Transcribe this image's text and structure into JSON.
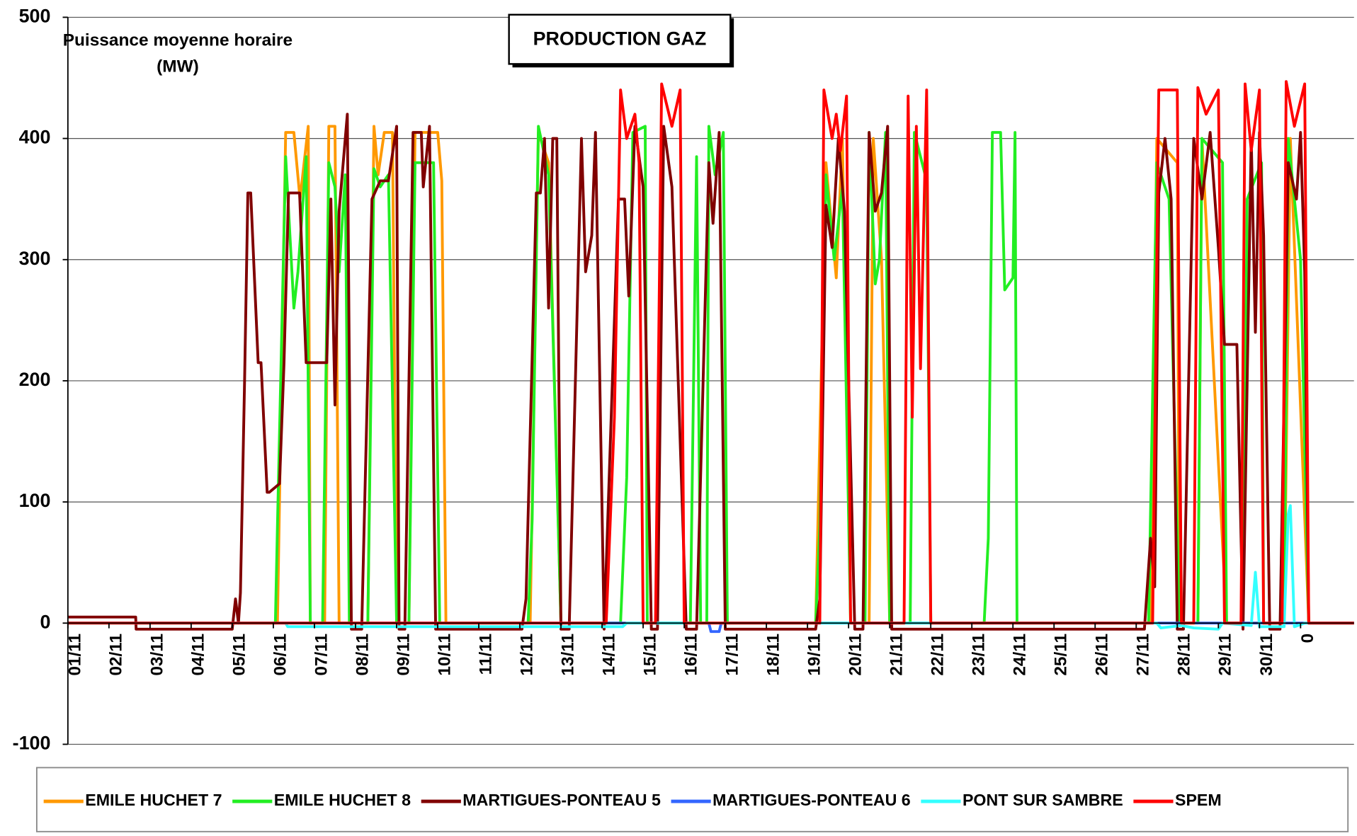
{
  "chart_data": {
    "type": "line",
    "title": "PRODUCTION GAZ",
    "y_label": "Puissance moyenne horaire (MW)",
    "xlim": [
      0,
      31.3
    ],
    "ylim": [
      -100,
      500
    ],
    "yticks": [
      -100,
      0,
      100,
      200,
      300,
      400,
      500
    ],
    "xticks": [
      {
        "value": 0,
        "label": "01/11"
      },
      {
        "value": 1,
        "label": "02/11"
      },
      {
        "value": 2,
        "label": "03/11"
      },
      {
        "value": 3,
        "label": "04/11"
      },
      {
        "value": 4,
        "label": "05/11"
      },
      {
        "value": 5,
        "label": "06/11"
      },
      {
        "value": 6,
        "label": "07/11"
      },
      {
        "value": 7,
        "label": "08/11"
      },
      {
        "value": 8,
        "label": "09/11"
      },
      {
        "value": 9,
        "label": "10/11"
      },
      {
        "value": 10,
        "label": "11/11"
      },
      {
        "value": 11,
        "label": "12/11"
      },
      {
        "value": 12,
        "label": "13/11"
      },
      {
        "value": 13,
        "label": "14/11"
      },
      {
        "value": 14,
        "label": "15/11"
      },
      {
        "value": 15,
        "label": "16/11"
      },
      {
        "value": 16,
        "label": "17/11"
      },
      {
        "value": 17,
        "label": "18/11"
      },
      {
        "value": 18,
        "label": "19/11"
      },
      {
        "value": 19,
        "label": "20/11"
      },
      {
        "value": 20,
        "label": "21/11"
      },
      {
        "value": 21,
        "label": "22/11"
      },
      {
        "value": 22,
        "label": "23/11"
      },
      {
        "value": 23,
        "label": "24/11"
      },
      {
        "value": 24,
        "label": "25/11"
      },
      {
        "value": 25,
        "label": "26/11"
      },
      {
        "value": 26,
        "label": "27/11"
      },
      {
        "value": 27,
        "label": "28/11"
      },
      {
        "value": 28,
        "label": "29/11"
      },
      {
        "value": 29,
        "label": "30/11"
      },
      {
        "value": 30,
        "label": "0"
      }
    ],
    "grid": true,
    "legend": "bottom",
    "series": [
      {
        "name": "EMILE HUCHET 7",
        "color": "#ff9900",
        "x": [
          0,
          5.1,
          5.3,
          5.5,
          5.65,
          5.85,
          5.9,
          6.25,
          6.35,
          6.5,
          6.6,
          7.3,
          7.45,
          7.55,
          7.7,
          7.9,
          8.0,
          8.3,
          8.45,
          9.0,
          9.1,
          9.2,
          11.25,
          11.45,
          11.7,
          12.0,
          18.2,
          18.45,
          18.7,
          18.85,
          19.05,
          19.5,
          19.6,
          19.8,
          20.0,
          26.35,
          26.5,
          27.0,
          27.05,
          27.5,
          27.6,
          28.2,
          29.6,
          29.75,
          30.2,
          31.3
        ],
        "values": [
          0,
          0,
          405,
          405,
          350,
          410,
          0,
          0,
          410,
          410,
          0,
          0,
          410,
          370,
          405,
          405,
          0,
          0,
          405,
          405,
          365,
          0,
          0,
          405,
          380,
          0,
          0,
          380,
          285,
          400,
          0,
          0,
          400,
          300,
          0,
          0,
          400,
          380,
          0,
          0,
          400,
          0,
          0,
          400,
          0,
          0
        ]
      },
      {
        "name": "EMILE HUCHET 8",
        "color": "#22ee22",
        "x": [
          0,
          5.05,
          5.1,
          5.3,
          5.5,
          5.6,
          5.8,
          5.9,
          6.2,
          6.35,
          6.5,
          6.6,
          6.75,
          6.85,
          7.3,
          7.45,
          7.6,
          7.8,
          8.0,
          8.3,
          8.45,
          8.9,
          9.05,
          11.2,
          11.3,
          11.45,
          11.7,
          12.0,
          13.45,
          13.6,
          13.75,
          14.05,
          14.1,
          15.15,
          15.3,
          15.4,
          15.55,
          15.6,
          15.75,
          15.95,
          16.05,
          18.2,
          18.3,
          18.45,
          18.65,
          18.85,
          19.05,
          19.4,
          19.5,
          19.65,
          19.75,
          19.9,
          20.0,
          20.5,
          20.6,
          20.9,
          21.0,
          22.3,
          22.4,
          22.5,
          22.7,
          22.8,
          23.0,
          23.05,
          23.1,
          26.3,
          26.5,
          26.8,
          27.05,
          27.5,
          27.6,
          28.1,
          28.2,
          28.6,
          28.7,
          29.05,
          29.1,
          29.6,
          29.7,
          30.0,
          30.2,
          31.3
        ],
        "values": [
          0,
          0,
          80,
          385,
          260,
          290,
          385,
          0,
          0,
          380,
          360,
          290,
          370,
          0,
          0,
          375,
          360,
          370,
          0,
          0,
          380,
          380,
          0,
          0,
          85,
          410,
          370,
          0,
          0,
          120,
          405,
          410,
          0,
          0,
          385,
          0,
          0,
          410,
          370,
          405,
          0,
          0,
          80,
          370,
          300,
          360,
          0,
          0,
          405,
          280,
          300,
          405,
          0,
          0,
          405,
          365,
          0,
          0,
          70,
          405,
          405,
          275,
          285,
          405,
          0,
          0,
          380,
          350,
          0,
          0,
          400,
          380,
          0,
          0,
          350,
          380,
          0,
          0,
          400,
          300,
          0,
          0
        ]
      },
      {
        "name": "MARTIGUES-PONTEAU 5",
        "color": "#800000",
        "x": [
          0,
          1.65,
          1.66,
          4.0,
          4.08,
          4.15,
          4.2,
          4.3,
          4.38,
          4.45,
          4.63,
          4.7,
          4.85,
          4.9,
          5.15,
          5.26,
          5.37,
          5.64,
          5.8,
          6.3,
          6.4,
          6.5,
          6.6,
          6.8,
          6.9,
          7.15,
          7.4,
          7.6,
          7.8,
          8.0,
          8.06,
          8.2,
          8.4,
          8.6,
          8.65,
          8.8,
          8.95,
          11.05,
          11.15,
          11.4,
          11.5,
          11.6,
          11.7,
          11.8,
          11.9,
          12.0,
          12.2,
          12.5,
          12.6,
          12.75,
          12.84,
          13.05,
          13.4,
          13.55,
          13.65,
          13.8,
          14.0,
          14.2,
          14.35,
          14.5,
          14.7,
          15.05,
          15.3,
          15.6,
          15.7,
          15.85,
          16.0,
          18.2,
          18.3,
          18.45,
          18.6,
          18.75,
          18.9,
          19.15,
          19.35,
          19.5,
          19.65,
          19.8,
          19.95,
          20.05,
          26.2,
          26.35,
          26.45,
          26.55,
          26.7,
          26.85,
          27.0,
          27.15,
          27.4,
          27.6,
          27.8,
          28.0,
          28.15,
          28.45,
          28.6,
          28.8,
          28.9,
          29.0,
          29.1,
          29.25,
          29.5,
          29.7,
          29.9,
          30.0,
          30.1,
          30.2,
          31.3
        ],
        "values": [
          5,
          5,
          -5,
          -5,
          20,
          0,
          25,
          200,
          355,
          355,
          215,
          215,
          108,
          108,
          115,
          215,
          355,
          355,
          215,
          215,
          350,
          180,
          340,
          420,
          -5,
          -5,
          350,
          365,
          365,
          410,
          -5,
          -5,
          405,
          405,
          360,
          410,
          -5,
          -5,
          20,
          355,
          355,
          400,
          260,
          400,
          400,
          -5,
          -5,
          400,
          290,
          320,
          405,
          -5,
          350,
          350,
          270,
          410,
          360,
          -5,
          -5,
          410,
          360,
          -5,
          -5,
          380,
          330,
          405,
          -5,
          -5,
          20,
          345,
          310,
          400,
          340,
          -5,
          -5,
          405,
          340,
          355,
          410,
          -5,
          -5,
          70,
          30,
          355,
          400,
          350,
          -5,
          -5,
          400,
          350,
          405,
          310,
          230,
          230,
          -5,
          400,
          240,
          405,
          320,
          -5,
          -5,
          380,
          350,
          405,
          290,
          0,
          0
        ]
      },
      {
        "name": "MARTIGUES-PONTEAU 6",
        "color": "#3366ff",
        "x": [
          0,
          15.6,
          15.65,
          15.85,
          15.9,
          31.3
        ],
        "values": [
          0,
          0,
          -7,
          -7,
          0,
          0
        ]
      },
      {
        "name": "PONT SUR SAMBRE",
        "color": "#33ffff",
        "x": [
          0,
          5.3,
          5.35,
          13.5,
          13.6,
          26.5,
          26.6,
          27.1,
          27.4,
          28.0,
          28.1,
          28.8,
          28.9,
          29.0,
          29.6,
          29.7,
          29.75,
          29.85,
          30.1,
          31.3
        ],
        "values": [
          0,
          0,
          -3,
          -3,
          0,
          0,
          -4,
          -2,
          -4,
          -5,
          0,
          -2,
          42,
          -3,
          -3,
          90,
          97,
          -3,
          0,
          0
        ]
      },
      {
        "name": "SPEM",
        "color": "#ff0000",
        "x": [
          0,
          13.1,
          13.3,
          13.45,
          13.6,
          13.8,
          13.9,
          14.0,
          14.3,
          14.45,
          14.7,
          14.9,
          15.0,
          18.3,
          18.4,
          18.6,
          18.7,
          18.8,
          18.95,
          19.05,
          20.35,
          20.45,
          20.55,
          20.65,
          20.75,
          20.9,
          21.0,
          26.4,
          26.55,
          27.0,
          27.1,
          27.4,
          27.5,
          27.7,
          28.0,
          28.15,
          28.55,
          28.65,
          28.8,
          29.0,
          29.1,
          29.55,
          29.65,
          29.85,
          30.1,
          30.2,
          31.3
        ],
        "values": [
          0,
          0,
          170,
          440,
          400,
          420,
          380,
          0,
          0,
          445,
          410,
          440,
          0,
          0,
          440,
          400,
          420,
          390,
          435,
          0,
          0,
          435,
          170,
          410,
          210,
          440,
          0,
          0,
          440,
          440,
          0,
          0,
          442,
          420,
          440,
          0,
          0,
          445,
          390,
          440,
          0,
          0,
          447,
          410,
          445,
          0,
          0
        ]
      }
    ]
  }
}
